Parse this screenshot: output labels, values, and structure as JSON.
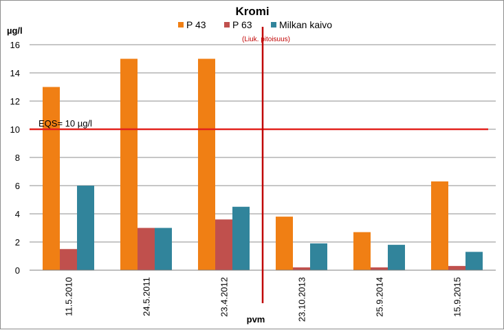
{
  "chart_data": {
    "type": "bar",
    "title": "Kromi",
    "ylabel": "µg/l",
    "xlabel": "pvm",
    "ylim": [
      0,
      16
    ],
    "yticks": [
      0,
      2,
      4,
      6,
      8,
      10,
      12,
      14,
      16
    ],
    "categories": [
      "11.5.2010",
      "24.5.2011",
      "23.4.2012",
      "23.10.2013",
      "25.9.2014",
      "15.9.2015"
    ],
    "series": [
      {
        "name": "P 43",
        "color": "#f07f14",
        "values": [
          13,
          15,
          15,
          3.8,
          2.7,
          6.3
        ]
      },
      {
        "name": "P 63",
        "color": "#c0504d",
        "values": [
          1.5,
          3,
          3.6,
          0.2,
          0.2,
          0.3
        ]
      },
      {
        "name": "Milkan kaivo",
        "color": "#31849b",
        "values": [
          6,
          3,
          4.5,
          1.9,
          1.8,
          1.3
        ]
      }
    ],
    "grid": true,
    "legend": "top",
    "reference_line": {
      "value": 10,
      "label": "EQS= 10 µg/l",
      "color": "#e3211c"
    },
    "divider": {
      "after_category": "23.4.2012",
      "label": "(Liuk. pitoisuus)",
      "color": "#c00000"
    }
  }
}
